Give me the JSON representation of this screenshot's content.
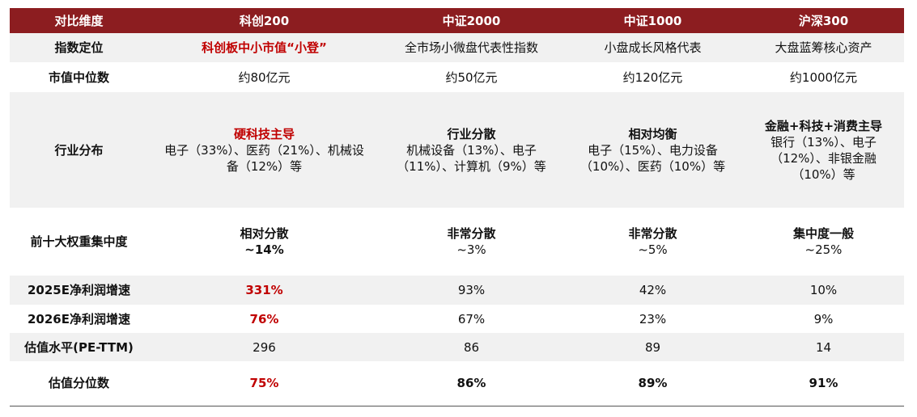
{
  "headers": [
    "对比维度",
    "科创200",
    "中证2000",
    "中证1000",
    "沪深300"
  ],
  "rows": [
    {
      "label": "指数定位",
      "cells": [
        "科创板中小市值“小登”",
        "全市场小微盘代表性指数",
        "小盘成长风格代表",
        "大盘蓝筹核心资产"
      ]
    },
    {
      "label": "市值中位数",
      "cells": [
        "约80亿元",
        "约50亿元",
        "约120亿元",
        "约1000亿元"
      ]
    },
    {
      "label": "行业分布",
      "cells": [
        {
          "title": "硬科技主导",
          "body": "电子（33%）、医药（21%）、机械设备（12%）等"
        },
        {
          "title": "行业分散",
          "body": "机械设备（13%）、电子（11%）、计算机（9%）等"
        },
        {
          "title": "相对均衡",
          "body": "电子（15%）、电力设备（10%）、医药（10%）等"
        },
        {
          "title": "金融+科技+消费主导",
          "body": "银行（13%）、电子（12%）、非银金融（10%）等"
        }
      ]
    },
    {
      "label": "前十大权重集中度",
      "cells": [
        {
          "title": "相对分散",
          "body": "~14%"
        },
        {
          "title": "非常分散",
          "body": "~3%"
        },
        {
          "title": "非常分散",
          "body": "~5%"
        },
        {
          "title": "集中度一般",
          "body": "~25%"
        }
      ]
    },
    {
      "label": "2025E净利润增速",
      "cells": [
        "331%",
        "93%",
        "42%",
        "10%"
      ]
    },
    {
      "label": "2026E净利润增速",
      "cells": [
        "76%",
        "67%",
        "23%",
        "9%"
      ]
    },
    {
      "label": "估值水平(PE-TTM)",
      "cells": [
        "296",
        "86",
        "89",
        "14"
      ]
    },
    {
      "label": "估值分位数",
      "cells": [
        "75%",
        "86%",
        "89%",
        "91%"
      ]
    }
  ],
  "colors": {
    "header": "#8c1d20",
    "highlight": "#c00000",
    "stripe": "#f1f1f1"
  }
}
